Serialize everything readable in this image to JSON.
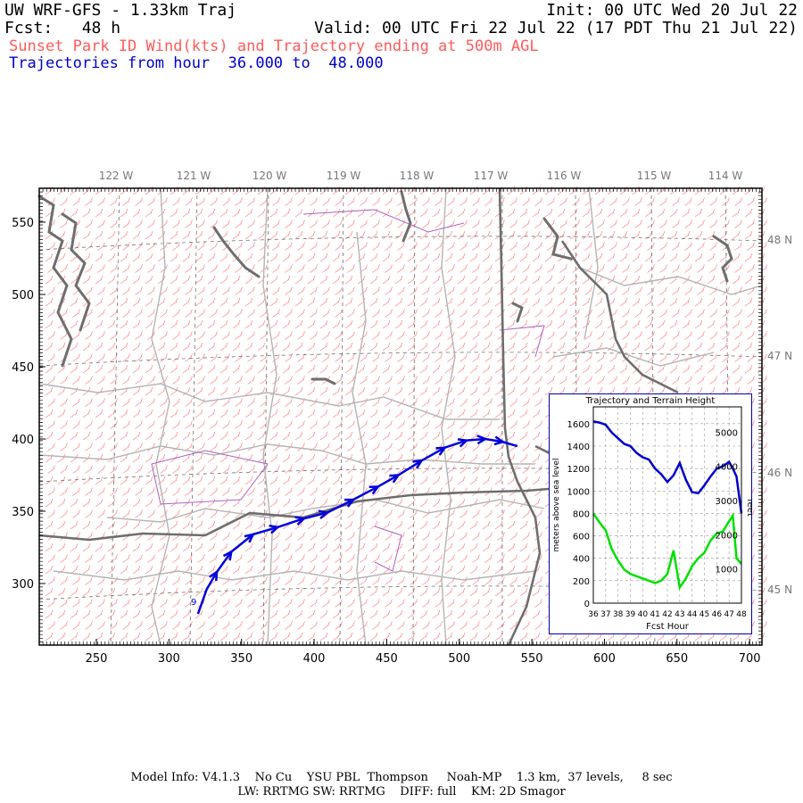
{
  "header": {
    "title_left": "UW WRF-GFS - 1.33km Traj",
    "init": "Init: 00 UTC Wed 20 Jul 22",
    "fcst": "Fcst:   48 h",
    "valid": "Valid: 00 UTC Fri 22 Jul 22 (17 PDT Thu 21 Jul 22)",
    "subtitle_red": "Sunset Park ID Wind(kts) and Trajectory ending at 500m AGL",
    "subtitle_blue": "Trajectories from hour  36.000 to  48.000"
  },
  "map": {
    "lon_labels": [
      "122 W",
      "121 W",
      "120 W",
      "119 W",
      "118 W",
      "117 W",
      "116 W",
      "115 W",
      "114 W"
    ],
    "lat_labels": [
      "48 N",
      "47 N",
      "46 N",
      "45 N"
    ],
    "x_ticks": [
      "250",
      "300",
      "350",
      "400",
      "450",
      "500",
      "550",
      "600",
      "650",
      "700"
    ],
    "y_ticks": [
      "550",
      "500",
      "450",
      "400",
      "350",
      "300"
    ],
    "trajectory_points": [
      [
        320,
        279
      ],
      [
        326,
        296
      ],
      [
        333,
        308
      ],
      [
        343,
        322
      ],
      [
        358,
        334
      ],
      [
        375,
        339
      ],
      [
        393,
        345
      ],
      [
        409,
        349
      ],
      [
        427,
        358
      ],
      [
        444,
        367
      ],
      [
        458,
        375
      ],
      [
        474,
        385
      ],
      [
        490,
        394
      ],
      [
        505,
        399
      ],
      [
        518,
        400
      ],
      [
        530,
        398
      ],
      [
        540,
        395
      ]
    ],
    "colors": {
      "wind": "#ff6f6f",
      "trajectory": "#0000dd",
      "coast": "#6e6e6e",
      "county": "#b4b4b4",
      "state": "#6e6e6e",
      "admin": "#b060c0",
      "grid": "#707070"
    }
  },
  "inset": {
    "title": "Trajectory and Terrain Height",
    "ylabel_left": "meters above sea level",
    "ylabel_right": "feet",
    "xlabel": "Fcst Hour",
    "x_ticks": [
      "36",
      "37",
      "38",
      "39",
      "40",
      "41",
      "42",
      "43",
      "44",
      "45",
      "46",
      "47",
      "48"
    ],
    "y_ticks_left": [
      "0",
      "200",
      "400",
      "600",
      "800",
      "1000",
      "1200",
      "1400",
      "1600"
    ],
    "y_ticks_right": [
      "1000",
      "2000",
      "3000",
      "4000",
      "5000"
    ],
    "colors": {
      "trajectory": "#0000cc",
      "terrain": "#00e000"
    }
  },
  "chart_data": {
    "type": "line",
    "title": "Trajectory and Terrain Height",
    "xlabel": "Fcst Hour",
    "ylabel": "meters above sea level",
    "xlim": [
      36,
      48
    ],
    "ylim": [
      0,
      1750
    ],
    "grid": true,
    "series": [
      {
        "x": [
          36,
          36.5,
          37,
          37.5,
          38,
          38.5,
          39,
          39.5,
          40,
          40.5,
          41,
          41.5,
          42,
          42.5,
          43,
          43.5,
          44,
          44.5,
          45,
          45.5,
          46,
          46.5,
          47,
          47.3,
          47.6,
          48
        ],
        "values": [
          1620,
          1610,
          1590,
          1520,
          1470,
          1420,
          1400,
          1340,
          1300,
          1280,
          1200,
          1150,
          1080,
          1140,
          1250,
          1100,
          990,
          980,
          1050,
          1130,
          1200,
          1220,
          1260,
          1200,
          1130,
          800
        ]
      },
      {
        "x": [
          36,
          36.5,
          37,
          37.5,
          38,
          38.5,
          39,
          39.5,
          40,
          40.5,
          41,
          41.5,
          42,
          42.5,
          43,
          43.5,
          44,
          44.5,
          45,
          45.5,
          46,
          46.5,
          47,
          47.3,
          47.6,
          48
        ],
        "values": [
          800,
          720,
          650,
          480,
          380,
          300,
          260,
          240,
          220,
          200,
          180,
          200,
          260,
          470,
          140,
          220,
          330,
          400,
          450,
          560,
          620,
          640,
          730,
          780,
          400,
          350
        ]
      }
    ]
  },
  "footer": {
    "line1": "Model Info: V4.1.3    No Cu    YSU PBL  Thompson     Noah-MP    1.3 km,  37 levels,     8 sec",
    "line2": "LW: RRTMG SW: RRTMG    DIFF: full    KM: 2D Smagor"
  }
}
